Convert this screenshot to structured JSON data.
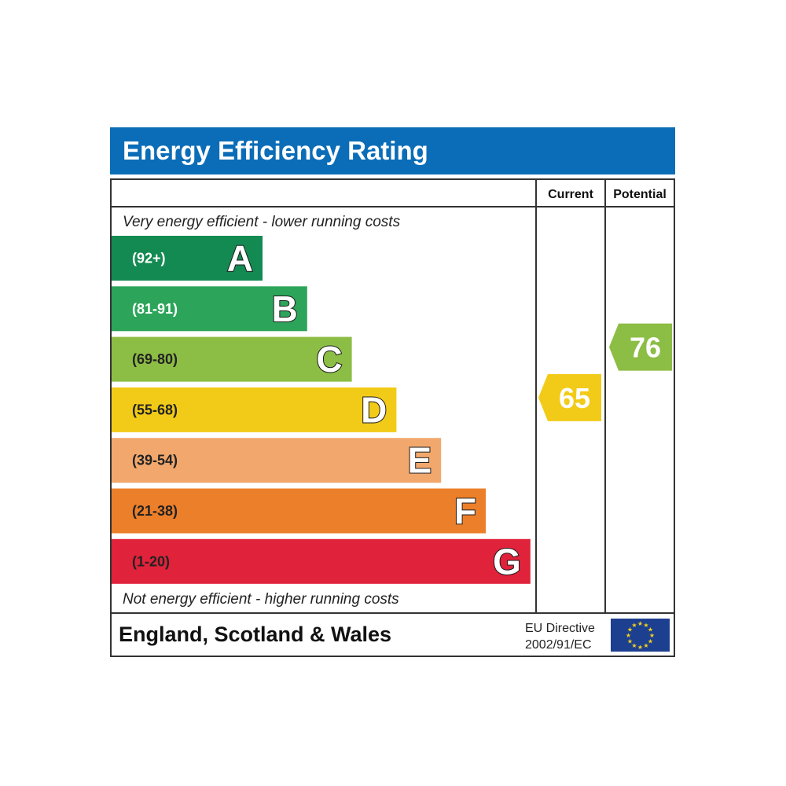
{
  "chart_data": {
    "type": "bar",
    "title": "Energy Efficiency Rating",
    "columns": {
      "current": "Current",
      "potential": "Potential"
    },
    "top_note": "Very energy efficient - lower running costs",
    "bottom_note": "Not energy efficient - higher running costs",
    "bands": [
      {
        "letter": "A",
        "range": "(92+)",
        "min": 92,
        "max": 100,
        "color": "#138a52",
        "range_color": "#ffffff"
      },
      {
        "letter": "B",
        "range": "(81-91)",
        "min": 81,
        "max": 91,
        "color": "#2ca55a",
        "range_color": "#ffffff"
      },
      {
        "letter": "C",
        "range": "(69-80)",
        "min": 69,
        "max": 80,
        "color": "#8cbd45",
        "range_color": "#222222"
      },
      {
        "letter": "D",
        "range": "(55-68)",
        "min": 55,
        "max": 68,
        "color": "#f2cb18",
        "range_color": "#222222"
      },
      {
        "letter": "E",
        "range": "(39-54)",
        "min": 39,
        "max": 54,
        "color": "#f2a86d",
        "range_color": "#222222"
      },
      {
        "letter": "F",
        "range": "(21-38)",
        "min": 21,
        "max": 38,
        "color": "#ec7f2a",
        "range_color": "#222222"
      },
      {
        "letter": "G",
        "range": "(1-20)",
        "min": 1,
        "max": 20,
        "color": "#e0223b",
        "range_color": "#222222"
      }
    ],
    "current": {
      "value": 65,
      "band": "D",
      "color": "#f2cb18"
    },
    "potential": {
      "value": 76,
      "band": "C",
      "color": "#8cbd45"
    }
  },
  "footer": {
    "region": "England, Scotland & Wales",
    "directive_line1": "EU Directive",
    "directive_line2": "2002/91/EC",
    "flag_icon": "eu-flag-icon",
    "flag_color": "#1d3f8f",
    "star_color": "#f4d21c"
  },
  "colors": {
    "title_bar": "#0b6db7",
    "border": "#333333"
  }
}
